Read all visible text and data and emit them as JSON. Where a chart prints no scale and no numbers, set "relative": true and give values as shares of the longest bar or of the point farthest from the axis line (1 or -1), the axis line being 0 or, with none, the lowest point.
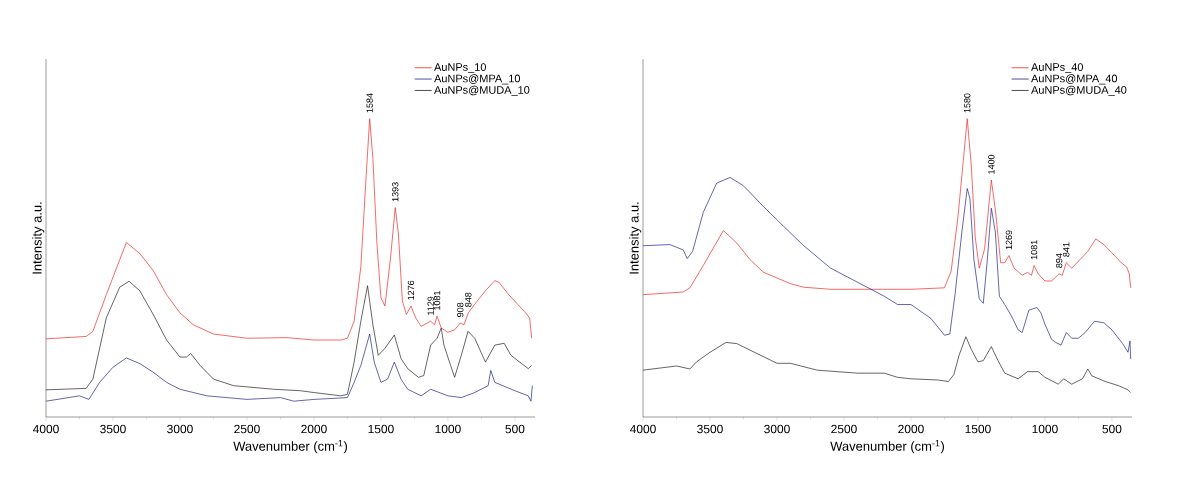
{
  "chart_data": [
    {
      "type": "line",
      "relative": true,
      "tick_labels": "x",
      "legend": "top right",
      "xlabel": "Wavenumber (cm$^{-1}$)",
      "ylabel": "Intensity a.u.",
      "xlim": [
        4000,
        350
      ],
      "xticks": [
        4000,
        3500,
        3000,
        2500,
        2000,
        1500,
        1000,
        500
      ],
      "series": [
        {
          "name": "AuNPs_10",
          "color": "#ee2a2a",
          "x": [
            4000,
            3700,
            3650,
            3550,
            3400,
            3300,
            3200,
            3100,
            3000,
            2900,
            2750,
            2500,
            2200,
            2000,
            1800,
            1750,
            1700,
            1650,
            1610,
            1584,
            1560,
            1530,
            1500,
            1470,
            1430,
            1393,
            1370,
            1340,
            1310,
            1276,
            1240,
            1200,
            1129,
            1100,
            1081,
            1050,
            1000,
            950,
            908,
            880,
            848,
            800,
            720,
            650,
            620,
            550,
            480,
            420,
            390,
            375
          ],
          "values": [
            0.262,
            0.27,
            0.287,
            0.41,
            0.585,
            0.548,
            0.491,
            0.41,
            0.349,
            0.309,
            0.278,
            0.264,
            0.266,
            0.258,
            0.258,
            0.264,
            0.321,
            0.503,
            0.81,
            1.0,
            0.867,
            0.582,
            0.4,
            0.372,
            0.526,
            0.702,
            0.617,
            0.389,
            0.344,
            0.372,
            0.332,
            0.304,
            0.321,
            0.309,
            0.338,
            0.298,
            0.284,
            0.292,
            0.315,
            0.309,
            0.349,
            0.378,
            0.423,
            0.457,
            0.452,
            0.412,
            0.378,
            0.349,
            0.332,
            0.264
          ]
        },
        {
          "name": "AuNPs@MPA_10",
          "color": "#23238c",
          "x": [
            4000,
            3750,
            3680,
            3600,
            3500,
            3400,
            3300,
            3200,
            3100,
            3000,
            2800,
            2500,
            2250,
            2150,
            2000,
            1750,
            1700,
            1650,
            1584,
            1550,
            1500,
            1450,
            1400,
            1350,
            1300,
            1200,
            1129,
            1000,
            900,
            800,
            700,
            680,
            650,
            500,
            400,
            380,
            370
          ],
          "values": [
            0.053,
            0.071,
            0.059,
            0.116,
            0.167,
            0.198,
            0.179,
            0.15,
            0.116,
            0.093,
            0.071,
            0.059,
            0.065,
            0.053,
            0.059,
            0.065,
            0.116,
            0.173,
            0.278,
            0.184,
            0.116,
            0.127,
            0.184,
            0.127,
            0.093,
            0.071,
            0.093,
            0.071,
            0.065,
            0.082,
            0.105,
            0.156,
            0.116,
            0.088,
            0.071,
            0.053,
            0.105
          ]
        },
        {
          "name": "AuNPs@MUDA_10",
          "color": "#222222",
          "x": [
            4000,
            3700,
            3650,
            3550,
            3450,
            3380,
            3300,
            3200,
            3100,
            3000,
            2950,
            2920,
            2850,
            2750,
            2600,
            2300,
            2100,
            2000,
            1800,
            1750,
            1700,
            1650,
            1600,
            1560,
            1520,
            1470,
            1400,
            1350,
            1300,
            1220,
            1180,
            1129,
            1081,
            1050,
            1030,
            980,
            950,
            900,
            850,
            800,
            720,
            650,
            580,
            530,
            450,
            400,
            375
          ],
          "values": [
            0.091,
            0.096,
            0.127,
            0.332,
            0.435,
            0.455,
            0.423,
            0.344,
            0.258,
            0.201,
            0.201,
            0.213,
            0.173,
            0.127,
            0.105,
            0.093,
            0.088,
            0.082,
            0.071,
            0.076,
            0.184,
            0.321,
            0.44,
            0.309,
            0.207,
            0.23,
            0.275,
            0.196,
            0.162,
            0.133,
            0.139,
            0.241,
            0.264,
            0.298,
            0.241,
            0.173,
            0.133,
            0.207,
            0.287,
            0.264,
            0.184,
            0.241,
            0.247,
            0.207,
            0.179,
            0.162,
            0.173
          ]
        }
      ],
      "annotations": [
        {
          "text": "1584",
          "x": 1584,
          "y": 1.0
        },
        {
          "text": "1393",
          "x": 1393,
          "y": 0.702
        },
        {
          "text": "1276",
          "x": 1276,
          "y": 0.372
        },
        {
          "text": "1129",
          "x": 1129,
          "y": 0.321
        },
        {
          "text": "1081",
          "x": 1081,
          "y": 0.338
        },
        {
          "text": "908",
          "x": 908,
          "y": 0.315
        },
        {
          "text": "848",
          "x": 848,
          "y": 0.349
        }
      ]
    },
    {
      "type": "line",
      "relative": true,
      "tick_labels": "x",
      "legend": "top right",
      "xlabel": "Wavenumber (cm$^{-1}$)",
      "ylabel": "Intensity a.u.",
      "xlim": [
        4000,
        350
      ],
      "xticks": [
        4000,
        3500,
        3000,
        2500,
        2000,
        1500,
        1000,
        500
      ],
      "series": [
        {
          "name": "AuNPs_40",
          "color": "#ee2a2a",
          "x": [
            4000,
            3700,
            3650,
            3550,
            3400,
            3300,
            3200,
            3100,
            3000,
            2900,
            2800,
            2600,
            2300,
            2000,
            1750,
            1700,
            1650,
            1610,
            1580,
            1550,
            1520,
            1490,
            1450,
            1400,
            1370,
            1330,
            1300,
            1269,
            1230,
            1170,
            1130,
            1100,
            1081,
            1050,
            1000,
            950,
            894,
            870,
            841,
            800,
            720,
            680,
            620,
            560,
            500,
            430,
            390,
            370,
            360
          ],
          "values": [
            0.41,
            0.419,
            0.433,
            0.508,
            0.625,
            0.583,
            0.527,
            0.485,
            0.466,
            0.447,
            0.435,
            0.428,
            0.428,
            0.428,
            0.433,
            0.489,
            0.667,
            0.855,
            1.0,
            0.845,
            0.602,
            0.499,
            0.564,
            0.794,
            0.695,
            0.517,
            0.517,
            0.541,
            0.499,
            0.475,
            0.485,
            0.475,
            0.508,
            0.48,
            0.456,
            0.456,
            0.48,
            0.475,
            0.517,
            0.499,
            0.536,
            0.555,
            0.597,
            0.578,
            0.55,
            0.517,
            0.503,
            0.48,
            0.433
          ]
        },
        {
          "name": "AuNPs@MPA_40",
          "color": "#23238c",
          "x": [
            4000,
            3800,
            3700,
            3670,
            3630,
            3550,
            3450,
            3350,
            3250,
            3100,
            2950,
            2800,
            2600,
            2400,
            2200,
            2100,
            2000,
            1850,
            1750,
            1710,
            1670,
            1620,
            1580,
            1560,
            1530,
            1490,
            1460,
            1430,
            1400,
            1370,
            1340,
            1300,
            1250,
            1200,
            1170,
            1120,
            1060,
            1030,
            1000,
            950,
            920,
            880,
            840,
            800,
            750,
            700,
            630,
            560,
            500,
            420,
            380,
            365,
            360
          ],
          "values": [
            0.574,
            0.578,
            0.56,
            0.531,
            0.555,
            0.686,
            0.784,
            0.803,
            0.775,
            0.705,
            0.639,
            0.574,
            0.499,
            0.452,
            0.405,
            0.377,
            0.377,
            0.33,
            0.274,
            0.278,
            0.414,
            0.62,
            0.766,
            0.733,
            0.527,
            0.396,
            0.381,
            0.527,
            0.7,
            0.62,
            0.405,
            0.377,
            0.339,
            0.292,
            0.283,
            0.358,
            0.367,
            0.349,
            0.311,
            0.26,
            0.25,
            0.241,
            0.283,
            0.264,
            0.264,
            0.283,
            0.321,
            0.316,
            0.292,
            0.246,
            0.217,
            0.255,
            0.194
          ]
        },
        {
          "name": "AuNPs@MUDA_40",
          "color": "#222222",
          "x": [
            4000,
            3750,
            3650,
            3600,
            3500,
            3380,
            3300,
            3150,
            3000,
            2900,
            2700,
            2400,
            2200,
            2100,
            2000,
            1800,
            1720,
            1680,
            1640,
            1590,
            1550,
            1500,
            1460,
            1400,
            1350,
            1300,
            1200,
            1130,
            1050,
            1000,
            900,
            860,
            800,
            720,
            680,
            650,
            550,
            450,
            380,
            360
          ],
          "values": [
            0.157,
            0.171,
            0.161,
            0.185,
            0.217,
            0.25,
            0.246,
            0.213,
            0.18,
            0.18,
            0.157,
            0.147,
            0.147,
            0.133,
            0.128,
            0.124,
            0.119,
            0.142,
            0.208,
            0.269,
            0.227,
            0.185,
            0.189,
            0.236,
            0.189,
            0.147,
            0.128,
            0.152,
            0.152,
            0.133,
            0.11,
            0.128,
            0.11,
            0.128,
            0.161,
            0.138,
            0.119,
            0.105,
            0.091,
            0.082
          ]
        }
      ],
      "annotations": [
        {
          "text": "1580",
          "x": 1580,
          "y": 1.0
        },
        {
          "text": "1400",
          "x": 1400,
          "y": 0.794
        },
        {
          "text": "1269",
          "x": 1269,
          "y": 0.541
        },
        {
          "text": "1081",
          "x": 1081,
          "y": 0.508
        },
        {
          "text": "894",
          "x": 894,
          "y": 0.48
        },
        {
          "text": "841",
          "x": 841,
          "y": 0.517
        }
      ]
    }
  ]
}
